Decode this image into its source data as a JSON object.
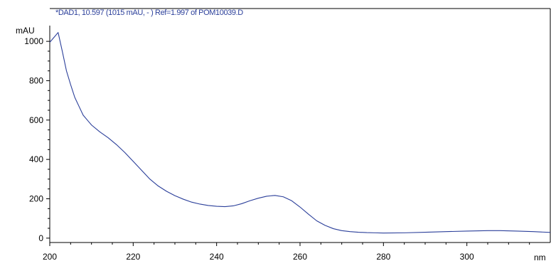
{
  "colors": {
    "trace": "#2b3f9a",
    "title": "#2b3f9a",
    "axis": "#000000"
  },
  "chart_data": {
    "type": "line",
    "title": "*DAD1, 10.597 (1015 mAU, - ) Ref=1.997 of POM10039.D",
    "xlabel": "nm",
    "ylabel": "mAU",
    "xlim": [
      200,
      320
    ],
    "ylim": [
      -15,
      1080
    ],
    "xticks": [
      200,
      220,
      240,
      260,
      280,
      300
    ],
    "xtick_labels": [
      "200",
      "220",
      "240",
      "260",
      "280",
      "300"
    ],
    "yticks": [
      0,
      200,
      400,
      600,
      800,
      1000
    ],
    "ytick_labels": [
      "0",
      "200",
      "400",
      "600",
      "800",
      "1000"
    ],
    "grid": false,
    "series": [
      {
        "x": [
          200,
          201,
          202,
          203,
          204,
          205,
          206,
          207,
          208,
          209,
          210,
          212,
          214,
          216,
          218,
          220,
          222,
          224,
          226,
          228,
          230,
          232,
          234,
          236,
          238,
          240,
          242,
          244,
          246,
          248,
          250,
          252,
          254,
          256,
          258,
          260,
          262,
          264,
          266,
          268,
          270,
          272,
          274,
          276,
          278,
          280,
          285,
          290,
          295,
          300,
          305,
          308,
          312,
          316,
          320
        ],
        "y": [
          995,
          1020,
          1045,
          950,
          850,
          780,
          715,
          670,
          625,
          600,
          575,
          540,
          510,
          475,
          435,
          390,
          345,
          300,
          265,
          238,
          216,
          198,
          183,
          173,
          166,
          162,
          160,
          164,
          175,
          190,
          203,
          213,
          217,
          210,
          190,
          158,
          122,
          88,
          65,
          48,
          38,
          33,
          30,
          28,
          27,
          26,
          27,
          30,
          33,
          36,
          38,
          38,
          36,
          33,
          29
        ]
      }
    ]
  }
}
